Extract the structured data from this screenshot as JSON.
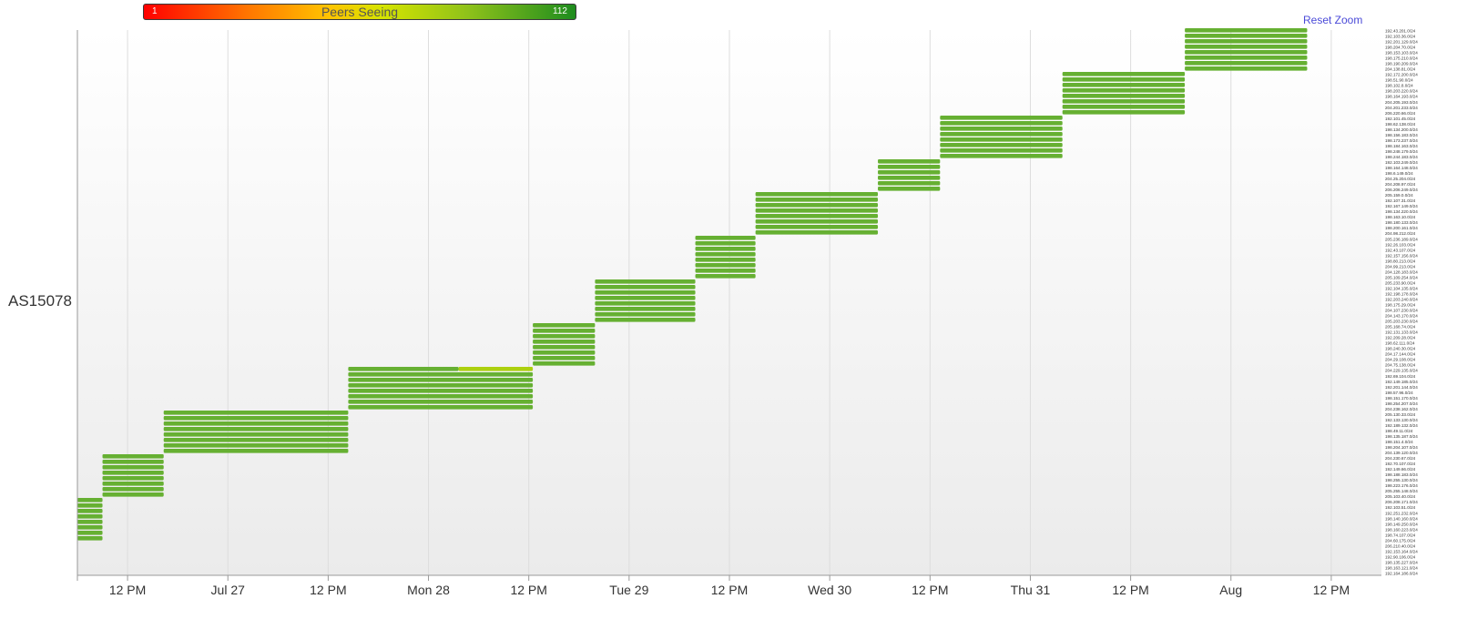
{
  "legend": {
    "min": "1",
    "max": "112",
    "title": "Peers Seeing"
  },
  "reset_zoom": "Reset Zoom",
  "y_axis_label": "AS15078",
  "colors": {
    "bar": "#66b032",
    "bar_light": "#a7cf2a",
    "grid": "#dddddd",
    "axis": "#999999"
  },
  "chart_data": {
    "type": "timeline",
    "x_ticks": [
      "12 PM",
      "Jul 27",
      "12 PM",
      "Mon 28",
      "12 PM",
      "Tue 29",
      "12 PM",
      "Wed 30",
      "12 PM",
      "Thu 31",
      "12 PM",
      "Aug",
      "12 PM"
    ],
    "xlim_days": [
      0,
      6.5
    ],
    "peer_scale": [
      1,
      112
    ],
    "prefix_labels": [
      "192.43.201.0/24",
      "192.103.36.0/24",
      "192.201.129.0/24",
      "198.204.70.0/24",
      "198.153.103.0/24",
      "198.175.210.0/24",
      "198.190.209.0/24",
      "204.138.81.0/24",
      "192.172.200.0/24",
      "198.51.90.0/24",
      "198.102.8.0/24",
      "198.203.220.0/24",
      "198.164.193.0/24",
      "204.205.193.0/24",
      "204.201.233.0/24",
      "206.220.66.0/24",
      "192.101.45.0/24",
      "198.62.138.0/24",
      "198.134.200.0/24",
      "198.156.183.0/24",
      "198.173.237.0/24",
      "198.184.163.0/24",
      "198.248.179.0/24",
      "198.244.183.0/24",
      "192.103.249.0/24",
      "198.164.148.0/24",
      "198.6.149.0/24",
      "204.25.204.0/24",
      "204.208.97.0/24",
      "206.206.249.0/24",
      "205.159.0.0/24",
      "192.107.31.0/24",
      "192.167.149.0/24",
      "198.134.220.0/24",
      "198.163.10.0/24",
      "198.180.133.0/24",
      "198.200.161.0/24",
      "204.98.212.0/24",
      "205.236.189.0/24",
      "192.26.103.0/24",
      "192.43.107.0/24",
      "192.157.156.0/24",
      "198.80.213.0/24",
      "204.99.213.0/24",
      "204.128.183.0/24",
      "205.109.254.0/24",
      "205.233.90.0/24",
      "192.104.135.0/24",
      "192.198.178.0/24",
      "192.203.240.0/24",
      "198.175.29.0/24",
      "204.107.230.0/24",
      "204.143.170.0/24",
      "205.203.230.0/24",
      "205.168.74.0/24",
      "192.131.133.0/24",
      "192.209.28.0/24",
      "198.62.111.0/24",
      "198.240.30.0/24",
      "204.17.144.0/24",
      "204.29.108.0/24",
      "204.75.138.0/24",
      "204.229.135.0/24",
      "192.69.104.0/24",
      "192.149.185.0/24",
      "192.201.144.0/24",
      "198.57.96.0/24",
      "198.151.170.0/24",
      "198.254.207.0/24",
      "204.238.162.0/24",
      "205.130.33.0/24",
      "192.133.130.0/24",
      "192.189.132.0/24",
      "198.49.11.0/24",
      "198.135.187.0/24",
      "198.151.4.0/24",
      "198.204.107.0/24",
      "204.139.120.0/24",
      "204.230.67.0/24",
      "192.70.107.0/24",
      "192.149.66.0/24",
      "198.188.183.0/24",
      "198.255.130.0/24",
      "198.223.176.0/24",
      "205.255.148.0/24",
      "205.103.40.0/24",
      "206.208.171.0/24",
      "192.103.51.0/24",
      "192.251.232.0/24",
      "198.140.160.0/24",
      "198.149.250.0/24",
      "198.160.223.0/24",
      "198.74.107.0/24",
      "204.60.175.0/24",
      "206.210.40.0/24",
      "192.153.164.0/24",
      "192.90.106.0/24",
      "198.135.227.0/24",
      "198.163.121.0/24",
      "192.164.186.0/24"
    ],
    "groups": [
      {
        "start": 0.0,
        "end": 0.125,
        "count": 8
      },
      {
        "start": 0.125,
        "end": 0.43,
        "count": 8
      },
      {
        "start": 0.43,
        "end": 1.35,
        "count": 8
      },
      {
        "start": 1.35,
        "end": 2.27,
        "count": 8,
        "partial": {
          "row": 0,
          "split": 1.9,
          "value2": 75
        }
      },
      {
        "start": 2.27,
        "end": 2.58,
        "count": 8
      },
      {
        "start": 2.58,
        "end": 3.08,
        "count": 8
      },
      {
        "start": 3.08,
        "end": 3.38,
        "count": 8
      },
      {
        "start": 3.38,
        "end": 3.99,
        "count": 8
      },
      {
        "start": 3.99,
        "end": 4.3,
        "count": 6
      },
      {
        "start": 4.3,
        "end": 4.91,
        "count": 8
      },
      {
        "start": 4.91,
        "end": 5.52,
        "count": 8
      },
      {
        "start": 5.52,
        "end": 6.13,
        "count": 8
      }
    ],
    "peer_value": 112
  }
}
